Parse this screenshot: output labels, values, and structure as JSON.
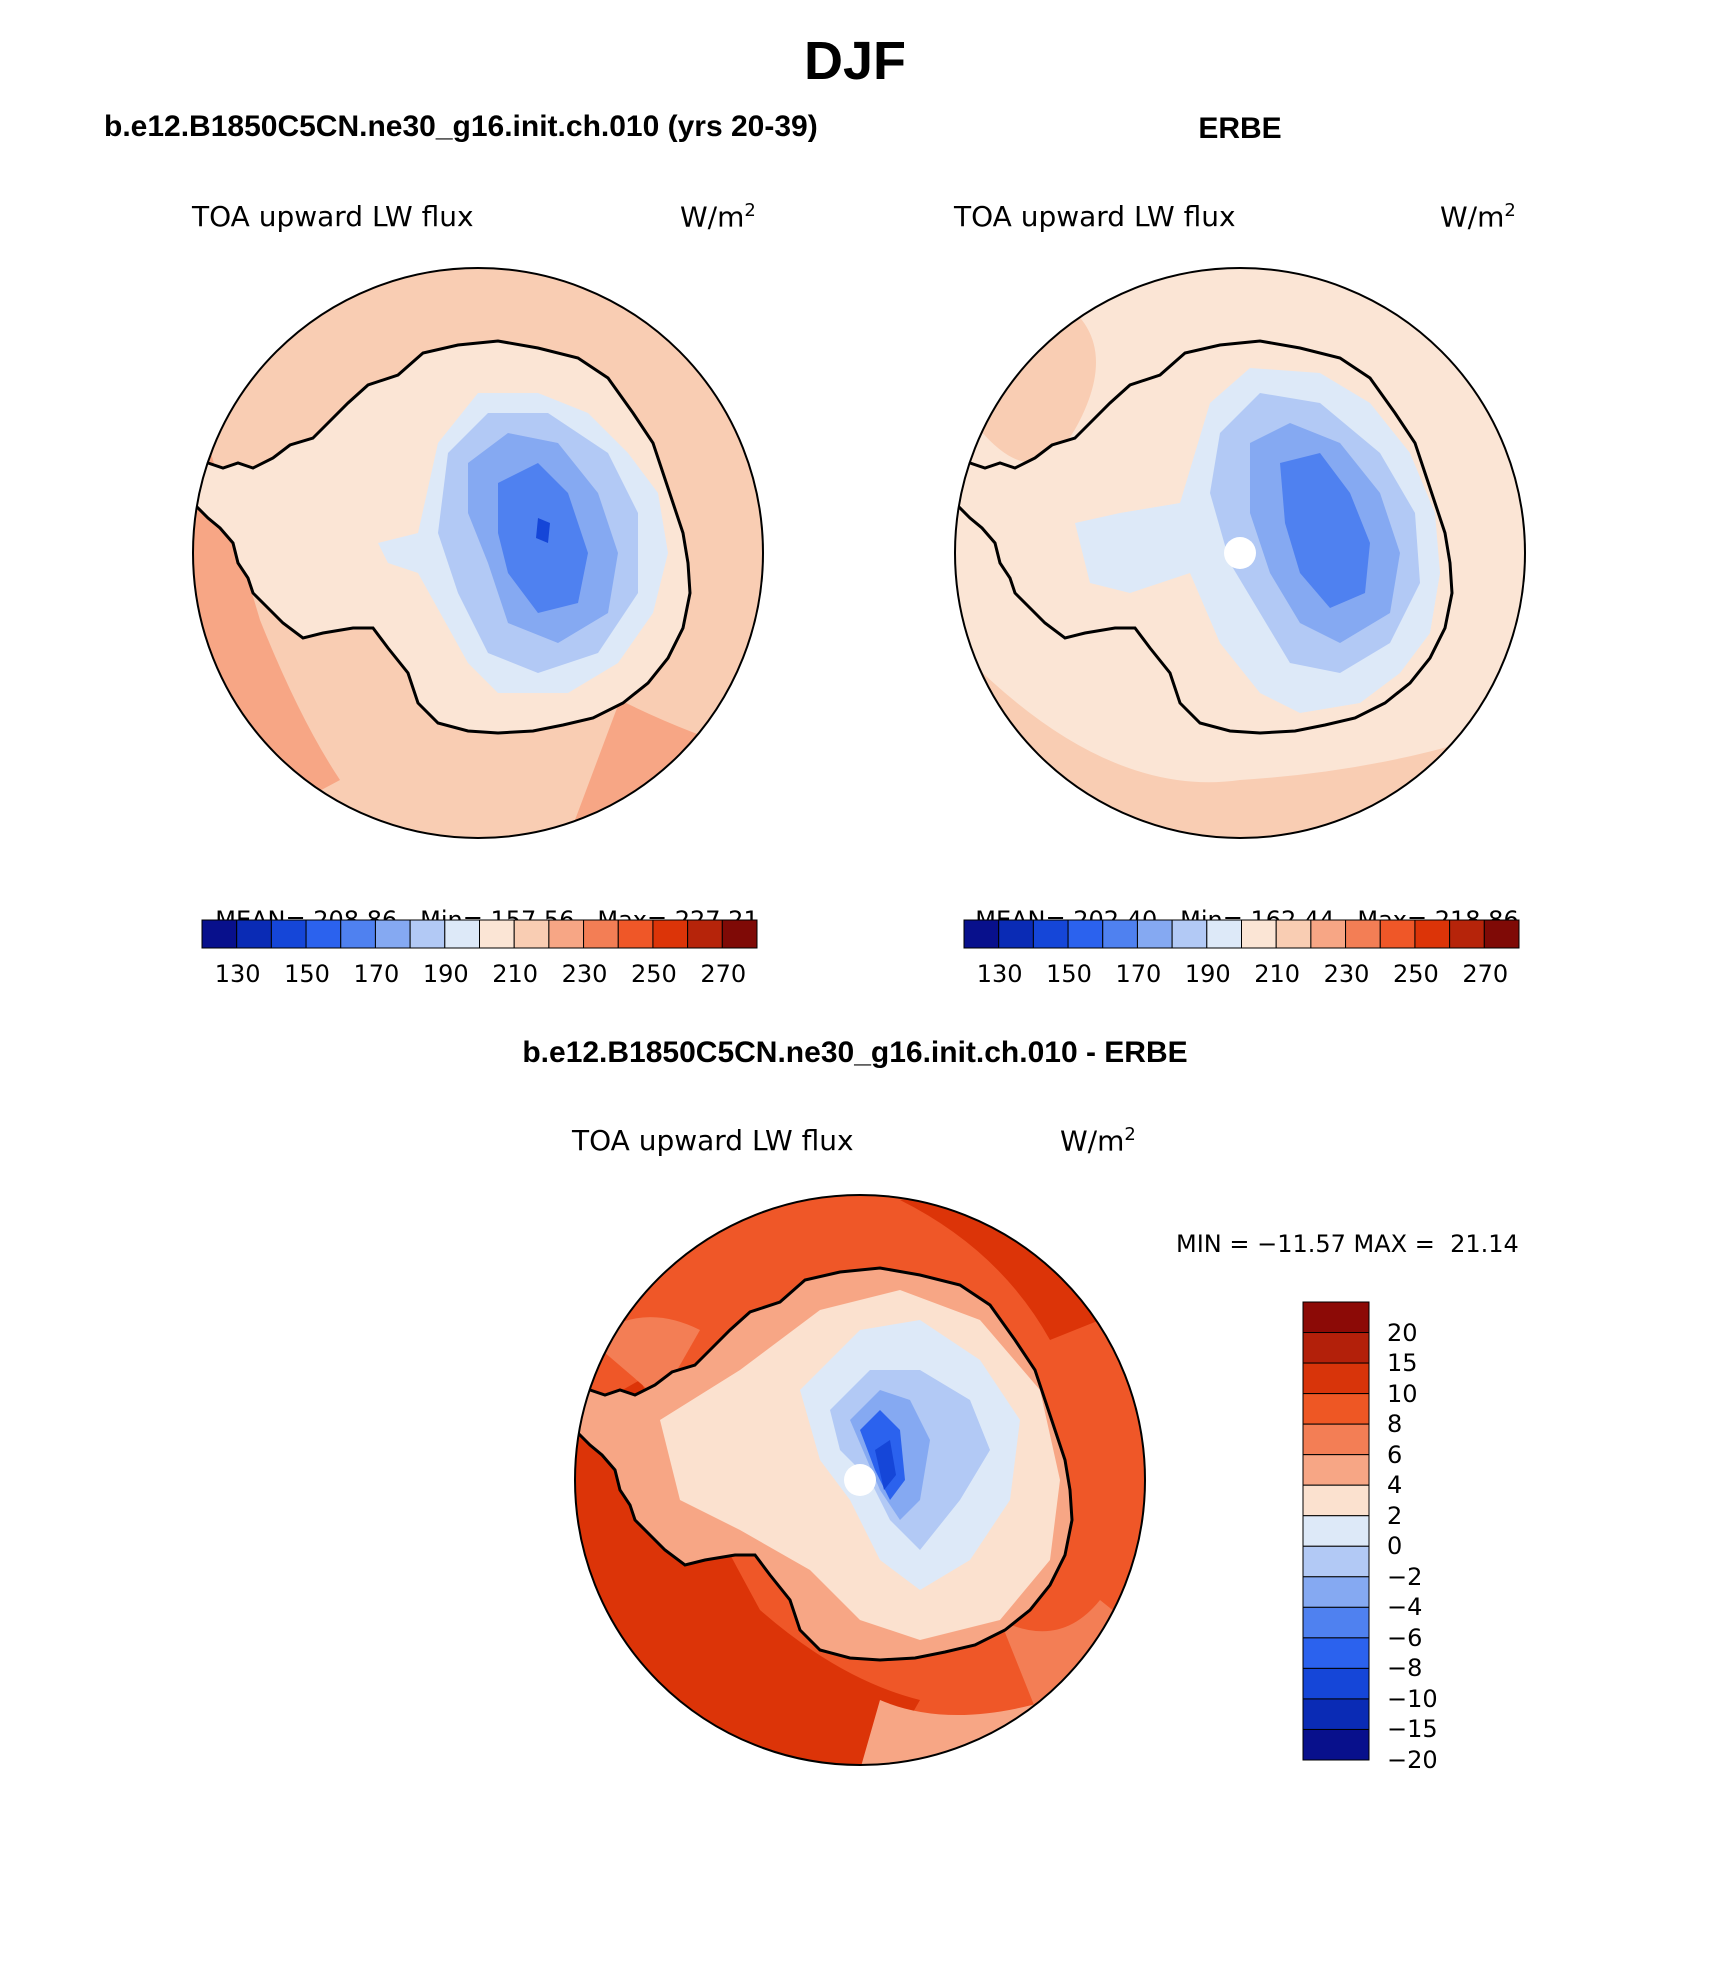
{
  "page_title": "DJF",
  "panels": [
    {
      "title": "b.e12.B1850C5CN.ne30_g16.init.ch.010 (yrs 20-39)",
      "left_label": "TOA upward LW flux",
      "units_base": "W/m",
      "units_exp": "2",
      "stats": {
        "mean_label": "MEAN=",
        "mean": "208.86",
        "min_label": "Min=",
        "min": "157.56",
        "max_label": "Max=",
        "max": "227.21"
      }
    },
    {
      "title": "ERBE",
      "left_label": "TOA upward LW flux",
      "units_base": "W/m",
      "units_exp": "2",
      "stats": {
        "mean_label": "MEAN=",
        "mean": "202.40",
        "min_label": "Min=",
        "min": "162.44",
        "max_label": "Max=",
        "max": "218.86"
      }
    },
    {
      "title": "b.e12.B1850C5CN.ne30_g16.init.ch.010 - ERBE",
      "left_label": "TOA upward LW flux",
      "units_base": "W/m",
      "units_exp": "2",
      "minmax": "MIN = −11.57 MAX =  21.14"
    }
  ],
  "abs_colorbar": {
    "tick_labels": [
      "130",
      "150",
      "170",
      "190",
      "210",
      "230",
      "250",
      "270"
    ],
    "colors": [
      "#08108c",
      "#0a2bb5",
      "#1546d8",
      "#2b62ee",
      "#4f81f0",
      "#85a9f2",
      "#b2c9f5",
      "#dde9f8",
      "#fbe5d5",
      "#f9cdb3",
      "#f7a685",
      "#f37e55",
      "#ef5728",
      "#dc3408",
      "#b6240a",
      "#7f0a06"
    ]
  },
  "diff_colorbar": {
    "tick_labels": [
      "20",
      "15",
      "10",
      "8",
      "6",
      "4",
      "2",
      "0",
      "−2",
      "−4",
      "−6",
      "−8",
      "−10",
      "−15",
      "−20"
    ],
    "colors_top_to_bottom": [
      "#8c0a06",
      "#b3200a",
      "#d8340a",
      "#ee5724",
      "#f37e55",
      "#f7a685",
      "#fbe1cf",
      "#dde9f8",
      "#b2c9f5",
      "#85a9f2",
      "#4f81f0",
      "#2b62ee",
      "#1546d8",
      "#0a2bb5",
      "#08108c"
    ]
  }
}
